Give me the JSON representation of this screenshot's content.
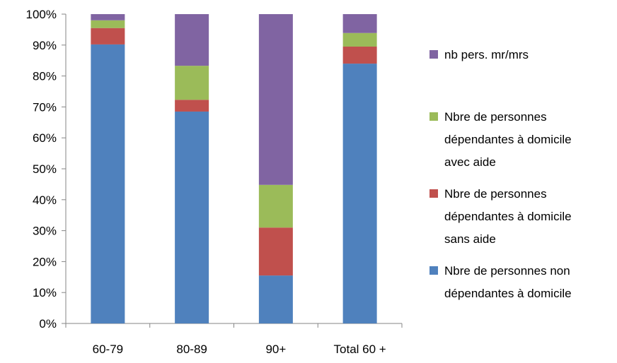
{
  "chart_data": {
    "type": "bar",
    "stacked": true,
    "normalized": true,
    "categories": [
      "60-79",
      "80-89",
      "90+",
      "Total 60 +"
    ],
    "series": [
      {
        "name": "Nbre de personnes non dépendantes à domicile",
        "legend_lines": [
          "Nbre de personnes non",
          "dépendantes à domicile"
        ],
        "color": "#4F81BD",
        "values": [
          90.2,
          68.5,
          15.5,
          84.0
        ]
      },
      {
        "name": "Nbre de personnes dépendantes à domicile sans aide",
        "legend_lines": [
          "Nbre de personnes",
          "dépendantes à domicile",
          "sans aide"
        ],
        "color": "#C0504D",
        "values": [
          5.3,
          3.8,
          15.5,
          5.5
        ]
      },
      {
        "name": "Nbre de personnes dépendantes à domicile avec aide",
        "legend_lines": [
          "Nbre de personnes",
          "dépendantes à domicile",
          "avec aide"
        ],
        "color": "#9BBB59",
        "values": [
          2.5,
          11.0,
          13.8,
          4.4
        ]
      },
      {
        "name": "nb pers. mr/mrs",
        "legend_lines": [
          "nb pers. mr/mrs"
        ],
        "color": "#8064A2",
        "values": [
          2.0,
          16.7,
          55.2,
          6.1
        ]
      }
    ],
    "y_ticks": [
      "0%",
      "10%",
      "20%",
      "30%",
      "40%",
      "50%",
      "60%",
      "70%",
      "80%",
      "90%",
      "100%"
    ],
    "ylim": [
      0,
      100
    ],
    "grid": false,
    "legend_position": "right"
  }
}
